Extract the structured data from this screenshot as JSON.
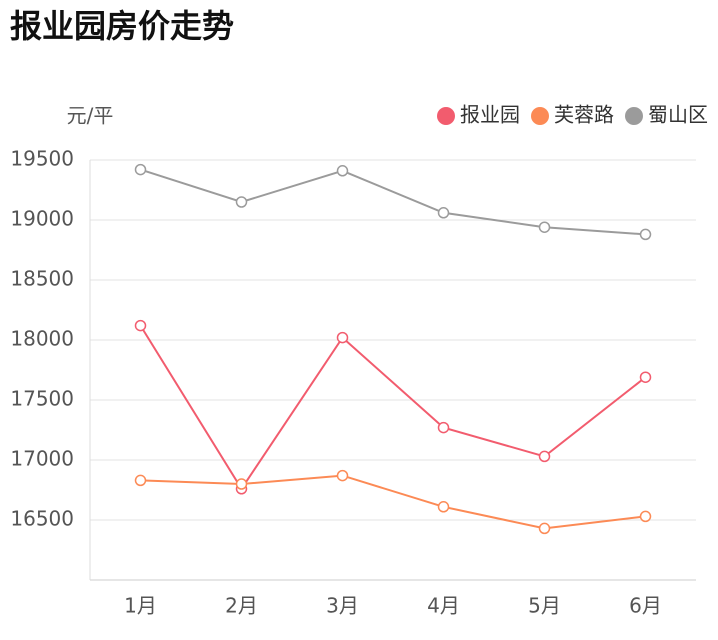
{
  "chart_data": {
    "type": "line",
    "title": "报业园房价走势",
    "y_label": "元/平",
    "categories": [
      "1月",
      "2月",
      "3月",
      "4月",
      "5月",
      "6月"
    ],
    "series": [
      {
        "name": "报业园",
        "color": "#f25c6e",
        "values": [
          18120,
          16760,
          18020,
          17270,
          17030,
          17690
        ]
      },
      {
        "name": "芙蓉路",
        "color": "#fc8a55",
        "values": [
          16830,
          16800,
          16870,
          16610,
          16430,
          16530
        ]
      },
      {
        "name": "蜀山区",
        "color": "#9b9b9b",
        "values": [
          19420,
          19150,
          19410,
          19060,
          18940,
          18880
        ]
      }
    ],
    "ylim": [
      16000,
      19500
    ],
    "yticks": [
      16500,
      17000,
      17500,
      18000,
      18500,
      19000,
      19500
    ],
    "grid": true,
    "legend": "top-right"
  }
}
